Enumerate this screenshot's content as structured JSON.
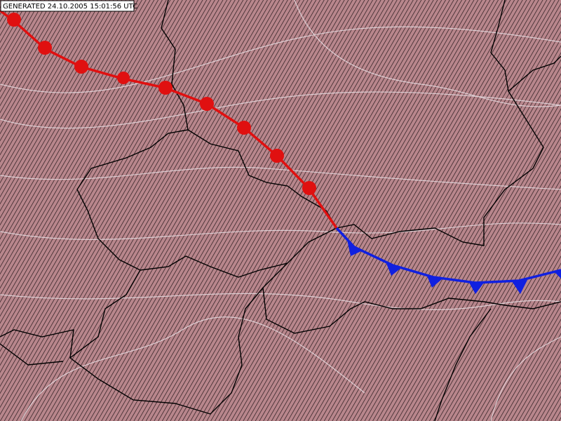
{
  "header": {
    "label": "GENERATED 24.10.2005 15:01:56 UTC"
  }
}
